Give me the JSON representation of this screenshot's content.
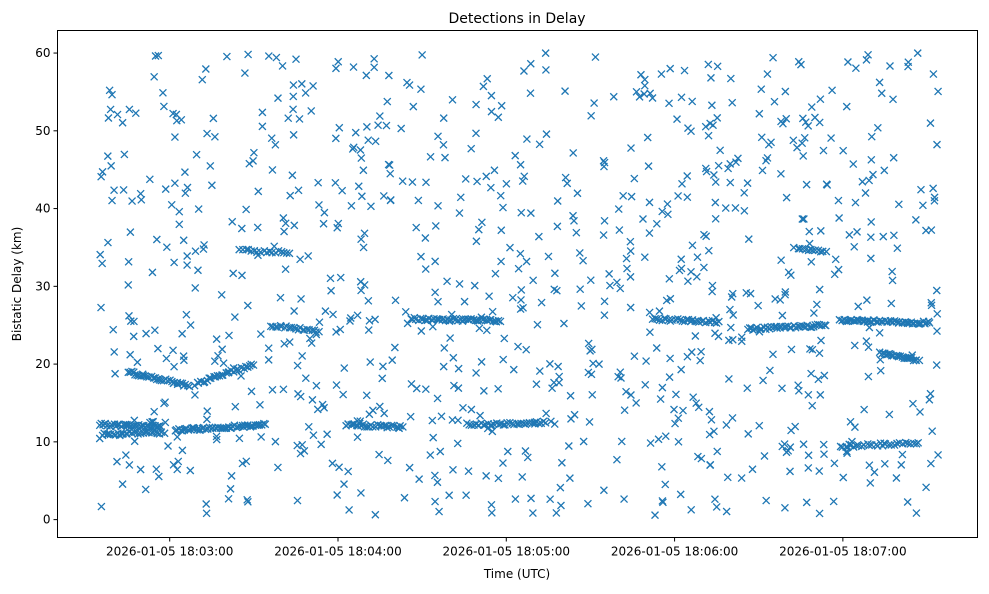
{
  "chart_data": {
    "type": "scatter",
    "title": "Detections in Delay",
    "xlabel": "Time (UTC)",
    "ylabel": "Bistatic Delay (km)",
    "x_units": "seconds after 2026-01-05 18:02:00",
    "xlim": [
      20,
      348
    ],
    "ylim": [
      -2.3,
      62.9
    ],
    "x_ticks": [
      {
        "value": 60,
        "label": "2026-01-05 18:03:00"
      },
      {
        "value": 120,
        "label": "2026-01-05 18:04:00"
      },
      {
        "value": 180,
        "label": "2026-01-05 18:05:00"
      },
      {
        "value": 240,
        "label": "2026-01-05 18:06:00"
      },
      {
        "value": 300,
        "label": "2026-01-05 18:07:00"
      }
    ],
    "y_ticks": [
      0,
      10,
      20,
      30,
      40,
      50,
      60
    ],
    "grid": false,
    "marker": "x",
    "color": "#1f77b4",
    "tracks": [
      {
        "t": [
          35,
          57
        ],
        "d": [
          12.2,
          12.0
        ],
        "n": 40
      },
      {
        "t": [
          36,
          58
        ],
        "d": [
          11.0,
          11.2
        ],
        "n": 30
      },
      {
        "t": [
          62,
          94
        ],
        "d": [
          11.5,
          12.2
        ],
        "n": 55
      },
      {
        "t": [
          45,
          67
        ],
        "d": [
          19.0,
          17.2
        ],
        "n": 35,
        "curve": 0.5
      },
      {
        "t": [
          69,
          90
        ],
        "d": [
          17.4,
          20.0
        ],
        "n": 30,
        "curve": -0.5
      },
      {
        "t": [
          85,
          103
        ],
        "d": [
          34.6,
          34.4
        ],
        "n": 18
      },
      {
        "t": [
          96,
          113
        ],
        "d": [
          25.0,
          24.2
        ],
        "n": 22
      },
      {
        "t": [
          123,
          143
        ],
        "d": [
          12.2,
          11.9
        ],
        "n": 28
      },
      {
        "t": [
          146,
          178
        ],
        "d": [
          25.8,
          25.6
        ],
        "n": 50
      },
      {
        "t": [
          167,
          194
        ],
        "d": [
          12.2,
          12.5
        ],
        "n": 35
      },
      {
        "t": [
          233,
          256
        ],
        "d": [
          25.8,
          25.4
        ],
        "n": 30
      },
      {
        "t": [
          266,
          294
        ],
        "d": [
          24.5,
          25.0
        ],
        "n": 40
      },
      {
        "t": [
          284,
          294
        ],
        "d": [
          34.7,
          34.5
        ],
        "n": 12
      },
      {
        "t": [
          299,
          331
        ],
        "d": [
          25.6,
          25.3
        ],
        "n": 55
      },
      {
        "t": [
          313,
          327
        ],
        "d": [
          21.4,
          20.5
        ],
        "n": 25
      },
      {
        "t": [
          299,
          327
        ],
        "d": [
          9.4,
          9.9
        ],
        "n": 30
      }
    ],
    "clutter": {
      "count": 900,
      "t_range": [
        35,
        334
      ],
      "d_range": [
        0.5,
        60
      ],
      "seed": 7
    }
  }
}
